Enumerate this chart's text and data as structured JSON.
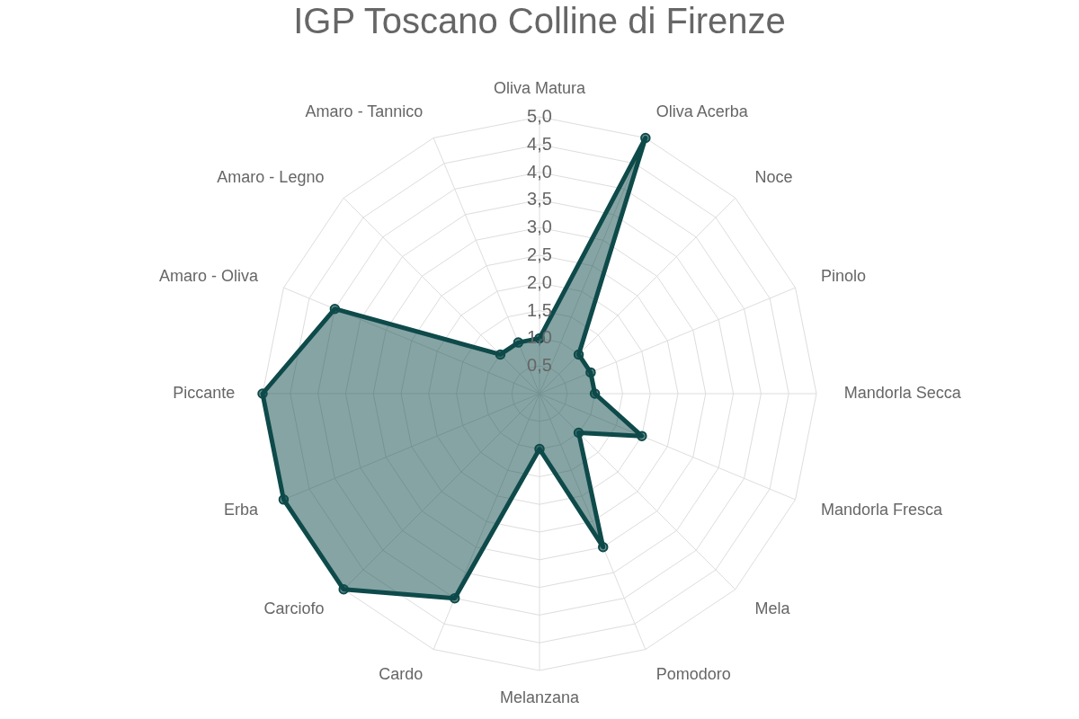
{
  "chart_data": {
    "type": "radar",
    "title": "IGP Toscano Colline di Firenze",
    "categories": [
      "Oliva Matura",
      "Oliva Acerba",
      "Noce",
      "Pinolo",
      "Mandorla Secca",
      "Mandorla Fresca",
      "Mela",
      "Pomodoro",
      "Melanzana",
      "Cardo",
      "Carciofo",
      "Erba",
      "Piccante",
      "Amaro - Oliva",
      "Amaro - Legno",
      "Amaro - Tannico"
    ],
    "series": [
      {
        "color": "#0e4a4a",
        "values": [
          1.0,
          5.0,
          1.0,
          1.0,
          1.0,
          2.0,
          1.0,
          3.0,
          1.0,
          4.0,
          5.0,
          5.0,
          5.0,
          4.0,
          1.0,
          1.0
        ]
      }
    ],
    "ylim": [
      0,
      5
    ],
    "yticks": [
      {
        "value": 0.5,
        "label": "0,5"
      },
      {
        "value": 1,
        "label": "1,0"
      },
      {
        "value": 1.5,
        "label": "1,5"
      },
      {
        "value": 2,
        "label": "2,0"
      },
      {
        "value": 2.5,
        "label": "2,5"
      },
      {
        "value": 3,
        "label": "3,0"
      },
      {
        "value": 3.5,
        "label": "3,5"
      },
      {
        "value": 4,
        "label": "4,0"
      },
      {
        "value": 4.5,
        "label": "4,5"
      },
      {
        "value": 5,
        "label": "5,0"
      }
    ],
    "grid": true,
    "marker": "circle"
  }
}
